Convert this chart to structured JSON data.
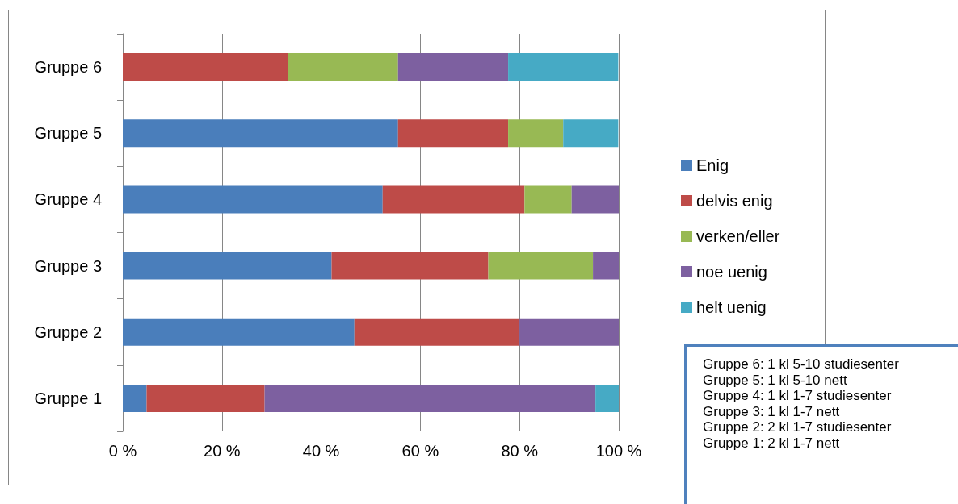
{
  "chart_data": {
    "type": "bar",
    "orientation": "horizontal",
    "stacked": true,
    "categories": [
      "Gruppe 6",
      "Gruppe 5",
      "Gruppe 4",
      "Gruppe 3",
      "Gruppe 2",
      "Gruppe 1"
    ],
    "series": [
      {
        "name": "Enig",
        "color": "#4a7ebb",
        "values": [
          0,
          55.5,
          52.4,
          42.1,
          46.7,
          4.8
        ]
      },
      {
        "name": "delvis enig",
        "color": "#be4b48",
        "values": [
          33.3,
          22.2,
          28.6,
          31.6,
          33.3,
          23.8
        ]
      },
      {
        "name": "verken/eller",
        "color": "#98b954",
        "values": [
          22.2,
          11.1,
          9.5,
          21.1,
          0,
          0
        ]
      },
      {
        "name": "noe uenig",
        "color": "#7d60a0",
        "values": [
          22.2,
          0,
          9.5,
          5.3,
          20.0,
          66.7
        ]
      },
      {
        "name": "helt uenig",
        "color": "#46aac5",
        "values": [
          22.2,
          11.1,
          0,
          0,
          0,
          4.8
        ]
      }
    ],
    "xlim": [
      0,
      100
    ],
    "xticks": [
      {
        "value": 0,
        "label": "0 %"
      },
      {
        "value": 20,
        "label": "20 %"
      },
      {
        "value": 40,
        "label": "40 %"
      },
      {
        "value": 60,
        "label": "60 %"
      },
      {
        "value": 80,
        "label": "80 %"
      },
      {
        "value": 100,
        "label": "100 %"
      }
    ],
    "grid": "x",
    "legend": "right",
    "annotations": [
      "Gruppe 6: 1 kl 5-10 studiesenter",
      "Gruppe 5: 1 kl 5-10 nett",
      "Gruppe 4: 1 kl 1-7 studiesenter",
      "Gruppe 3: 1 kl 1-7 nett",
      "Gruppe 2: 2 kl 1-7 studiesenter",
      "Gruppe 1: 2 kl 1-7 nett"
    ]
  }
}
